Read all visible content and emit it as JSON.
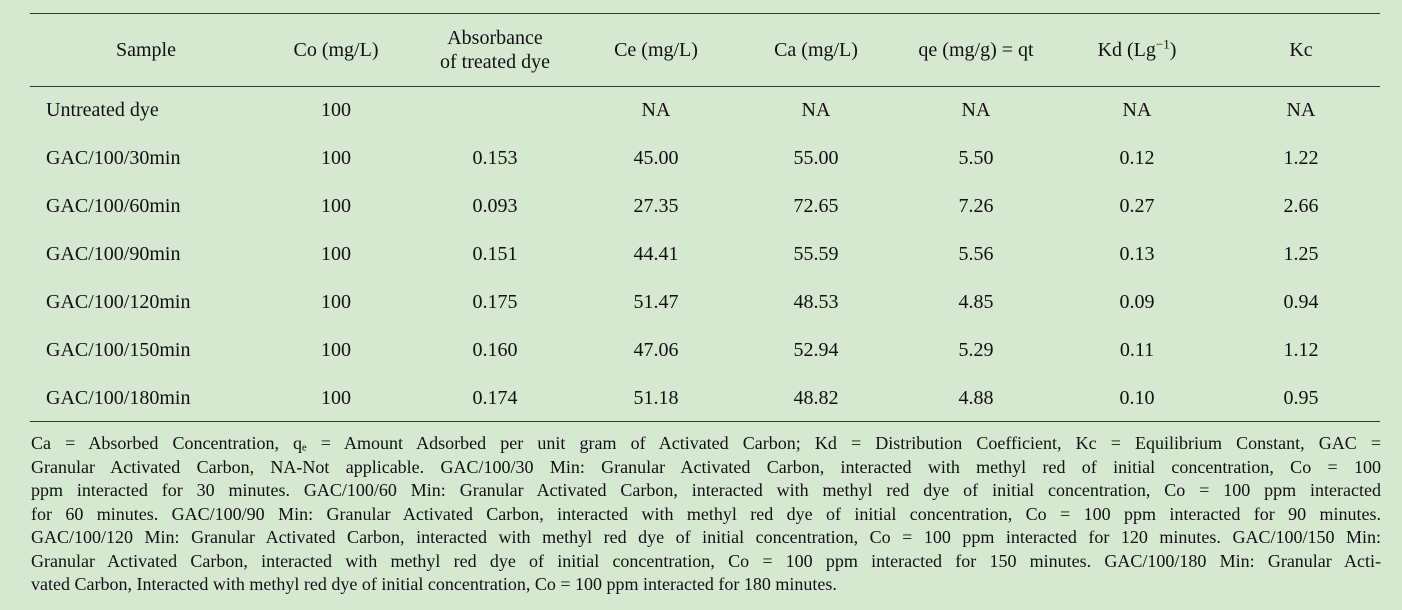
{
  "table": {
    "headers": {
      "sample": "Sample",
      "co": "Co (mg/L)",
      "absorbance_line1": "Absorbance",
      "absorbance_line2": "of treated dye",
      "ce": "Ce (mg/L)",
      "ca": "Ca (mg/L)",
      "qe": "qe (mg/g) = qt",
      "kd_prefix": "Kd (Lg",
      "kd_sup": "−1",
      "kd_suffix": ")",
      "kc": "Kc"
    },
    "rows": [
      {
        "sample": "Untreated dye",
        "co": "100",
        "absorbance": "",
        "ce": "NA",
        "ca": "NA",
        "qe": "NA",
        "kd": "NA",
        "kc": "NA"
      },
      {
        "sample": "GAC/100/30min",
        "co": "100",
        "absorbance": "0.153",
        "ce": "45.00",
        "ca": "55.00",
        "qe": "5.50",
        "kd": "0.12",
        "kc": "1.22"
      },
      {
        "sample": "GAC/100/60min",
        "co": "100",
        "absorbance": "0.093",
        "ce": "27.35",
        "ca": "72.65",
        "qe": "7.26",
        "kd": "0.27",
        "kc": "2.66"
      },
      {
        "sample": "GAC/100/90min",
        "co": "100",
        "absorbance": "0.151",
        "ce": "44.41",
        "ca": "55.59",
        "qe": "5.56",
        "kd": "0.13",
        "kc": "1.25"
      },
      {
        "sample": "GAC/100/120min",
        "co": "100",
        "absorbance": "0.175",
        "ce": "51.47",
        "ca": "48.53",
        "qe": "4.85",
        "kd": "0.09",
        "kc": "0.94"
      },
      {
        "sample": "GAC/100/150min",
        "co": "100",
        "absorbance": "0.160",
        "ce": "47.06",
        "ca": "52.94",
        "qe": "5.29",
        "kd": "0.11",
        "kc": "1.12"
      },
      {
        "sample": "GAC/100/180min",
        "co": "100",
        "absorbance": "0.174",
        "ce": "51.18",
        "ca": "48.82",
        "qe": "4.88",
        "kd": "0.10",
        "kc": "0.95"
      }
    ]
  },
  "notes": {
    "lines": [
      "Ca = Absorbed Concentration, qₑ = Amount Adsorbed per unit gram of Activated Carbon; Kd = Distribution Coefficient, Kc = Equilibrium Constant, GAC =",
      "Granular Activated Carbon, NA-Not applicable. GAC/100/30 Min: Granular Activated Carbon, interacted with methyl red of initial concentration, Co = 100",
      "ppm interacted for 30 minutes. GAC/100/60 Min: Granular Activated Carbon, interacted with methyl red dye of initial concentration, Co = 100 ppm interacted",
      "for 60 minutes. GAC/100/90 Min: Granular Activated Carbon, interacted with methyl red dye of initial concentration, Co = 100 ppm interacted for 90 minutes.",
      "GAC/100/120 Min: Granular Activated Carbon, interacted with methyl red dye of initial concentration, Co = 100 ppm interacted for 120 minutes. GAC/100/150 Min:",
      "Granular Activated Carbon, interacted with methyl red dye of initial concentration, Co = 100 ppm interacted for 150 minutes. GAC/100/180 Min: Granular Acti-",
      "vated Carbon, Interacted with methyl red dye of initial concentration, Co = 100 ppm interacted for 180 minutes."
    ]
  },
  "colors": {
    "background": "#d5e8d0",
    "rule": "#333333",
    "text": "#111111"
  }
}
